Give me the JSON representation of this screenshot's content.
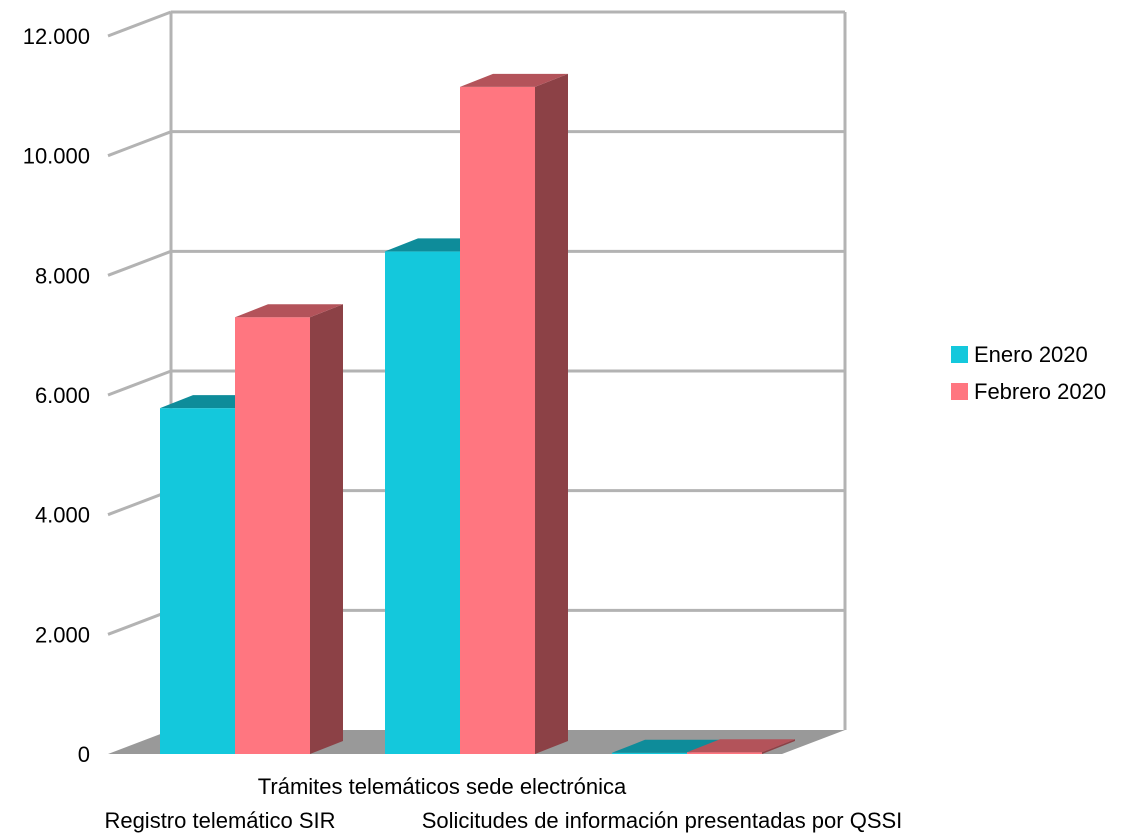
{
  "chart_data": {
    "type": "bar",
    "title": "",
    "xlabel": "",
    "ylabel": "",
    "categories": [
      "Registro telemático SIR",
      "Trámites telemáticos sede electrónica",
      "Solicitudes de información presentadas por QSSI"
    ],
    "series": [
      {
        "name": "Enero 2020",
        "color": "#14c8dc",
        "values": [
          5780,
          8400,
          20
        ]
      },
      {
        "name": "Febrero 2020",
        "color": "#ff7680",
        "values": [
          7300,
          11150,
          30
        ]
      }
    ],
    "ylim": [
      0,
      12000
    ],
    "yticks": [
      "0",
      "2.000",
      "4.000",
      "6.000",
      "8.000",
      "10.000",
      "12.000"
    ],
    "grid": true,
    "three_d": true,
    "legend_position": "right"
  }
}
